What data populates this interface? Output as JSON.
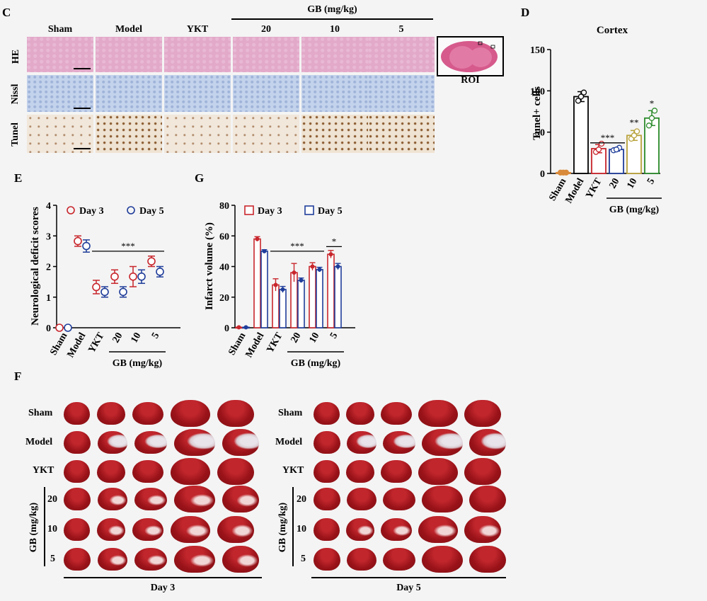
{
  "panel_c": {
    "letter": "C",
    "columns": [
      "Sham",
      "Model",
      "YKT",
      "20",
      "10",
      "5"
    ],
    "gb_label": "GB (mg/kg)",
    "rows": [
      "HE",
      "Nissl",
      "Tunel"
    ],
    "roi_label": "ROI"
  },
  "panel_d": {
    "letter": "D"
  },
  "panel_e": {
    "letter": "E"
  },
  "panel_g": {
    "letter": "G"
  },
  "panel_f": {
    "letter": "F",
    "left_rows": [
      "Sham",
      "Model",
      "YKT",
      "20",
      "10",
      "5"
    ],
    "right_rows": [
      "Sham",
      "Model",
      "YKT",
      "20",
      "10",
      "5"
    ],
    "gb_label": "GB (mg/kg)",
    "left_caption": "Day 3",
    "right_caption": "Day 5"
  },
  "chart_data": [
    {
      "id": "D",
      "type": "bar",
      "title": "Cortex",
      "ylabel": "Tunel+ cells",
      "categories": [
        "Sham",
        "Model",
        "YKT",
        "20",
        "10",
        "5"
      ],
      "group_label": "GB (mg/kg)",
      "values": [
        1,
        93,
        30,
        29,
        46,
        67
      ],
      "errors": [
        0.5,
        6,
        5,
        2,
        6,
        9
      ],
      "points": [
        [
          1,
          1,
          1
        ],
        [
          88,
          98,
          93
        ],
        [
          26,
          36,
          29
        ],
        [
          28,
          31,
          29
        ],
        [
          42,
          51,
          46
        ],
        [
          58,
          76,
          67
        ]
      ],
      "colors": [
        "#d98a3a",
        "#000000",
        "#c8262c",
        "#1f3d9a",
        "#b8a23a",
        "#2a8a2a"
      ],
      "ylim": [
        0,
        150
      ],
      "yticks": [
        0,
        50,
        100,
        150
      ],
      "annotations": [
        {
          "text": "***",
          "span": [
            "YKT",
            "20"
          ]
        },
        {
          "text": "**",
          "over": "10"
        },
        {
          "text": "*",
          "over": "5"
        }
      ]
    },
    {
      "id": "E",
      "type": "scatter",
      "ylabel": "Neurological deficit scores",
      "categories": [
        "Sham",
        "Model",
        "YKT",
        "20",
        "10",
        "5"
      ],
      "group_label": "GB (mg/kg)",
      "series": [
        {
          "name": "Day 3",
          "color": "#c8262c",
          "values": [
            0,
            2.83,
            1.33,
            1.67,
            1.67,
            2.17
          ],
          "errors": [
            0,
            0.17,
            0.22,
            0.22,
            0.33,
            0.17
          ]
        },
        {
          "name": "Day 5",
          "color": "#1f3d9a",
          "values": [
            0,
            2.67,
            1.17,
            1.17,
            1.67,
            1.83
          ],
          "errors": [
            0,
            0.2,
            0.17,
            0.17,
            0.22,
            0.17
          ]
        }
      ],
      "ylim": [
        0,
        4
      ],
      "yticks": [
        0,
        1,
        2,
        3,
        4
      ],
      "annotations": [
        {
          "text": "***",
          "span": [
            "YKT",
            "5"
          ]
        }
      ]
    },
    {
      "id": "G",
      "type": "bar",
      "ylabel": "Infarct volume (%)",
      "categories": [
        "Sham",
        "Model",
        "YKT",
        "20",
        "10",
        "5"
      ],
      "group_label": "GB (mg/kg)",
      "series": [
        {
          "name": "Day 3",
          "color": "#c8262c",
          "values": [
            0.3,
            58,
            28,
            36,
            40,
            48
          ],
          "errors": [
            0.1,
            1.5,
            4,
            6,
            2.5,
            2.5
          ]
        },
        {
          "name": "Day 5",
          "color": "#1f3d9a",
          "values": [
            0.3,
            50,
            25,
            31,
            38,
            40
          ],
          "errors": [
            0.1,
            1,
            2,
            1.5,
            1.5,
            2
          ]
        }
      ],
      "ylim": [
        0,
        80
      ],
      "yticks": [
        0,
        20,
        40,
        60,
        80
      ],
      "annotations": [
        {
          "text": "***",
          "span": [
            "YKT",
            "10"
          ]
        },
        {
          "text": "*",
          "span": [
            "5",
            "5"
          ]
        }
      ]
    }
  ]
}
